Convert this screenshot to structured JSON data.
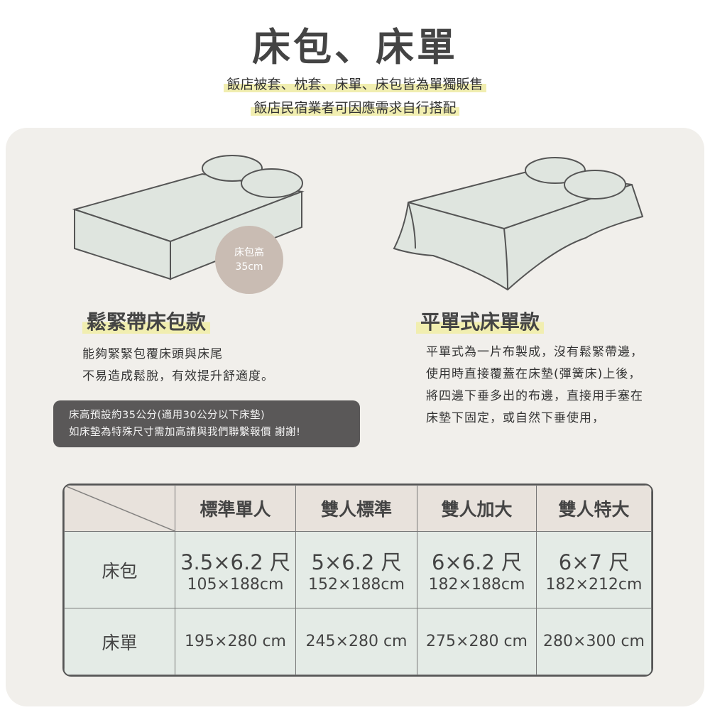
{
  "title": "床包、床單",
  "subtitle": [
    "飯店被套、枕套、床單、床包皆為單獨販售",
    "飯店民宿業者可因應需求自行搭配"
  ],
  "fitted": {
    "heading": "鬆緊帶床包款",
    "badge_label": "床包高",
    "badge_value": "35cm",
    "desc": [
      "能夠緊緊包覆床頭與床尾",
      "不易造成鬆脫，有效提升舒適度。"
    ],
    "note": [
      "床高預設約35公分(適用30公分以下床墊)",
      "如床墊為特殊尺寸需加高請與我們聯繫報價 謝謝!"
    ]
  },
  "flat": {
    "heading": "平單式床單款",
    "desc": [
      "平單式為一片布製成，沒有鬆緊帶邊，",
      "使用時直接覆蓋在床墊(彈簧床)上後，",
      "將四邊下垂多出的布邊，直接用手塞在",
      "床墊下固定，或自然下垂使用，"
    ]
  },
  "table": {
    "headers": [
      "標準單人",
      "雙人標準",
      "雙人加大",
      "雙人特大"
    ],
    "rows": [
      {
        "label": "床包",
        "cells": [
          [
            "3.5×6.2 尺",
            "105×188cm"
          ],
          [
            "5×6.2 尺",
            "152×188cm"
          ],
          [
            "6×6.2 尺",
            "182×188cm"
          ],
          [
            "6×7 尺",
            "182×212cm"
          ]
        ]
      },
      {
        "label": "床單",
        "cells": [
          "195×280 cm",
          "245×280 cm",
          "275×280 cm",
          "280×300 cm"
        ]
      }
    ]
  },
  "colors": {
    "panel": "#f1efeb",
    "highlight": "#f1eeb0",
    "bed": "#dfe5df",
    "note_bg": "#5a5858",
    "badge": "#c9bcb3",
    "header_bg": "#e8e2dc",
    "body_bg": "#e4ebe6"
  }
}
